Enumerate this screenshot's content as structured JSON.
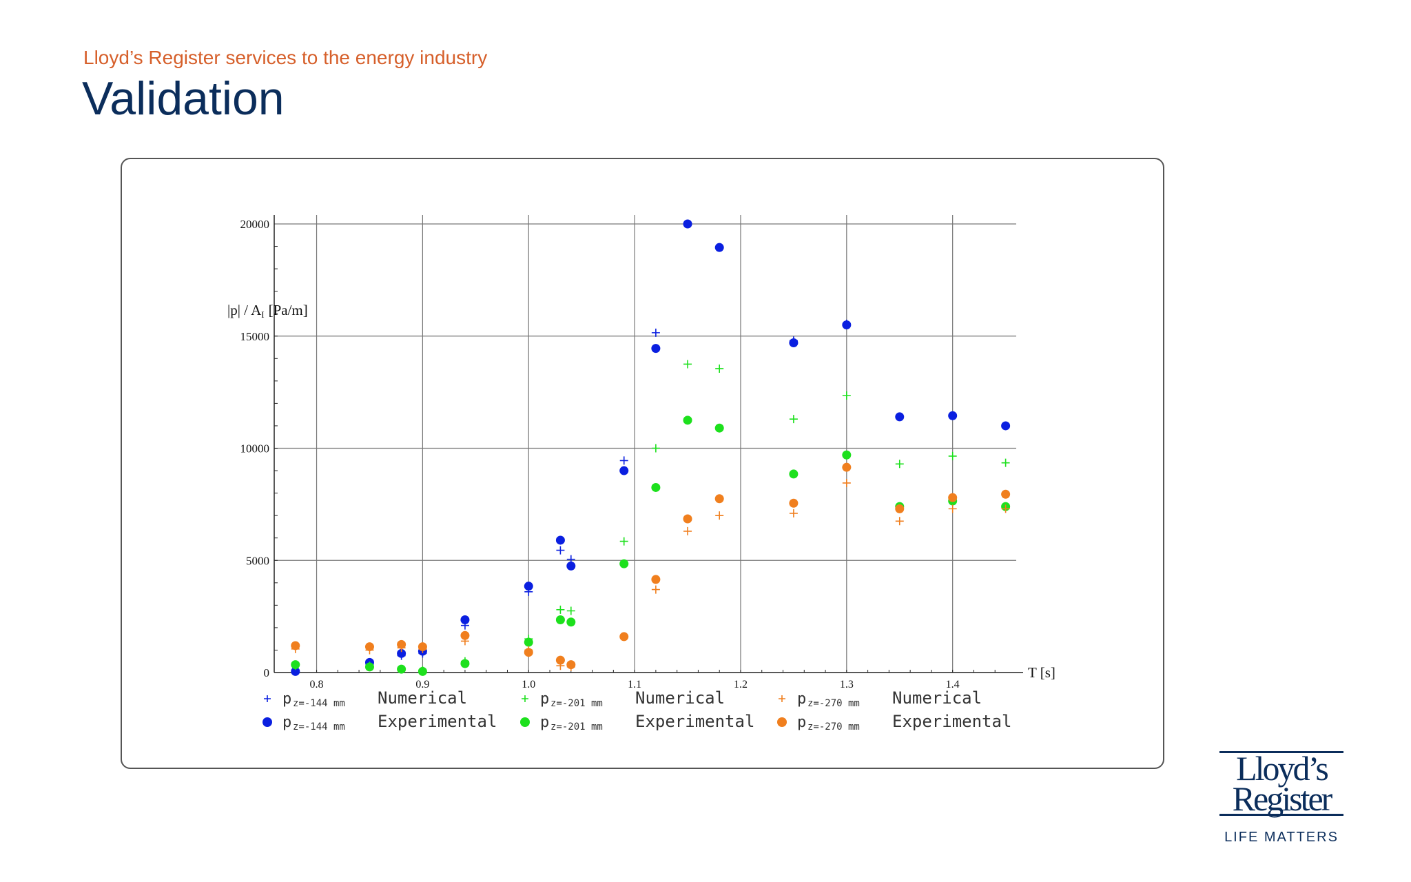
{
  "header": {
    "subtitle": "Lloyd’s Register services to the energy industry",
    "title": "Validation"
  },
  "logo": {
    "line1": "Lloyd’s",
    "line2": "Register",
    "tagline": "LIFE MATTERS"
  },
  "colors": {
    "subtitle": "#d65f2a",
    "title": "#0b2d5b",
    "blue": "#0a1fe0",
    "green": "#1de01d",
    "orange": "#f07f1e"
  },
  "chart_data": {
    "type": "scatter",
    "title": "",
    "ylabel": "|p| / A",
    "ylabel_sub": "I",
    "ylabel_unit": "[Pa/m]",
    "xlabel": "T [s]",
    "xlim": [
      0.76,
      1.46
    ],
    "ylim": [
      0,
      20000
    ],
    "xticks": [
      0.8,
      0.9,
      1.0,
      1.1,
      1.2,
      1.3,
      1.4
    ],
    "xtick_labels": [
      "0.8",
      "0.9",
      "1.0",
      "1.1",
      "1.2",
      "1.3",
      "1.4"
    ],
    "yticks": [
      0,
      5000,
      10000,
      15000,
      20000
    ],
    "ytick_labels": [
      "0",
      "5000",
      "10000",
      "15000",
      "20000"
    ],
    "grid": true,
    "legend_position": "bottom",
    "series": [
      {
        "name": "Numerical",
        "label_sym": "p",
        "label_sub": "z=-144 mm",
        "marker": "plus",
        "color": "#0a1fe0",
        "x": [
          0.78,
          0.85,
          0.88,
          0.9,
          0.94,
          1.0,
          1.03,
          1.04,
          1.09,
          1.12,
          1.25,
          1.3
        ],
        "y": [
          100,
          350,
          750,
          850,
          2100,
          3600,
          5450,
          5050,
          9450,
          15150,
          14800,
          15550
        ]
      },
      {
        "name": "Experimental",
        "label_sym": "p",
        "label_sub": "z=-144 mm",
        "marker": "dot",
        "color": "#0a1fe0",
        "x": [
          0.78,
          0.85,
          0.88,
          0.9,
          0.94,
          1.0,
          1.03,
          1.04,
          1.09,
          1.12,
          1.15,
          1.18,
          1.25,
          1.3,
          1.35,
          1.4,
          1.45
        ],
        "y": [
          50,
          450,
          850,
          950,
          2350,
          3850,
          5900,
          4750,
          9000,
          14450,
          20000,
          18950,
          14700,
          15500,
          11400,
          11450,
          11000
        ]
      },
      {
        "name": "Numerical",
        "label_sym": "p",
        "label_sub": "z=-201 mm",
        "marker": "plus",
        "color": "#1de01d",
        "x": [
          0.78,
          0.85,
          0.88,
          0.9,
          0.94,
          1.0,
          1.03,
          1.04,
          1.09,
          1.12,
          1.15,
          1.18,
          1.25,
          1.3,
          1.35,
          1.4,
          1.45
        ],
        "y": [
          300,
          300,
          150,
          100,
          500,
          1500,
          2800,
          2750,
          5850,
          10000,
          13750,
          13550,
          11300,
          12350,
          9300,
          9650,
          9350
        ]
      },
      {
        "name": "Experimental",
        "label_sym": "p",
        "label_sub": "z=-201 mm",
        "marker": "dot",
        "color": "#1de01d",
        "x": [
          0.78,
          0.85,
          0.88,
          0.9,
          0.94,
          1.0,
          1.03,
          1.04,
          1.09,
          1.12,
          1.15,
          1.18,
          1.25,
          1.3,
          1.35,
          1.4,
          1.45
        ],
        "y": [
          350,
          250,
          150,
          50,
          400,
          1350,
          2350,
          2250,
          4850,
          8250,
          11250,
          10900,
          8850,
          9700,
          7400,
          7650,
          7400
        ]
      },
      {
        "name": "Numerical",
        "label_sym": "p",
        "label_sub": "z=-270 mm",
        "marker": "plus",
        "color": "#f07f1e",
        "x": [
          0.78,
          0.85,
          0.88,
          0.9,
          0.94,
          1.0,
          1.03,
          1.04,
          1.09,
          1.12,
          1.15,
          1.18,
          1.25,
          1.3,
          1.35,
          1.4,
          1.45
        ],
        "y": [
          1050,
          1000,
          1100,
          1050,
          1400,
          1000,
          300,
          250,
          1600,
          3700,
          6300,
          7000,
          7100,
          8450,
          6750,
          7300,
          7300
        ]
      },
      {
        "name": "Experimental",
        "label_sym": "p",
        "label_sub": "z=-270 mm",
        "marker": "dot",
        "color": "#f07f1e",
        "x": [
          0.78,
          0.85,
          0.88,
          0.9,
          0.94,
          1.0,
          1.03,
          1.04,
          1.09,
          1.12,
          1.15,
          1.18,
          1.25,
          1.3,
          1.35,
          1.4,
          1.45
        ],
        "y": [
          1200,
          1150,
          1250,
          1150,
          1650,
          900,
          550,
          350,
          1600,
          4150,
          6850,
          7750,
          7550,
          9150,
          7300,
          7800,
          7950
        ]
      }
    ]
  }
}
